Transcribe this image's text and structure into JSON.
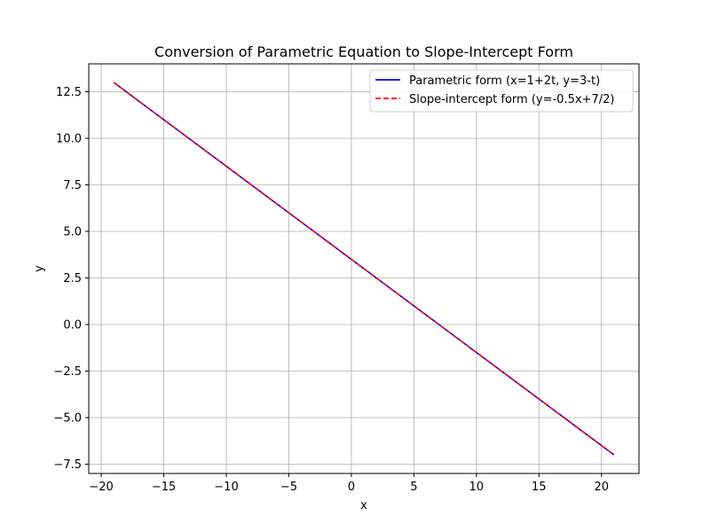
{
  "chart_data": {
    "type": "line",
    "title": "Conversion of Parametric Equation to Slope-Intercept Form",
    "xlabel": "x",
    "ylabel": "y",
    "xlim": [
      -21,
      23
    ],
    "ylim": [
      -8,
      14
    ],
    "x_ticks": [
      -20,
      -15,
      -10,
      -5,
      0,
      5,
      10,
      15,
      20
    ],
    "x_tick_labels": [
      "−20",
      "−15",
      "−10",
      "−5",
      "0",
      "5",
      "10",
      "15",
      "20"
    ],
    "y_ticks": [
      -7.5,
      -5.0,
      -2.5,
      0.0,
      2.5,
      5.0,
      7.5,
      10.0,
      12.5
    ],
    "y_tick_labels": [
      "−7.5",
      "−5.0",
      "−2.5",
      "0.0",
      "2.5",
      "5.0",
      "7.5",
      "10.0",
      "12.5"
    ],
    "grid": true,
    "legend_position": "top-right",
    "series": [
      {
        "name": "Parametric form (x=1+2t, y=3-t)",
        "color": "#0000ff",
        "style": "solid",
        "x": [
          -19,
          21
        ],
        "y": [
          13,
          -7
        ]
      },
      {
        "name": "Slope-intercept form (y=-0.5x+7/2)",
        "color": "#ff0000",
        "style": "dashed",
        "x": [
          -19,
          21
        ],
        "y": [
          13,
          -7
        ]
      }
    ]
  }
}
